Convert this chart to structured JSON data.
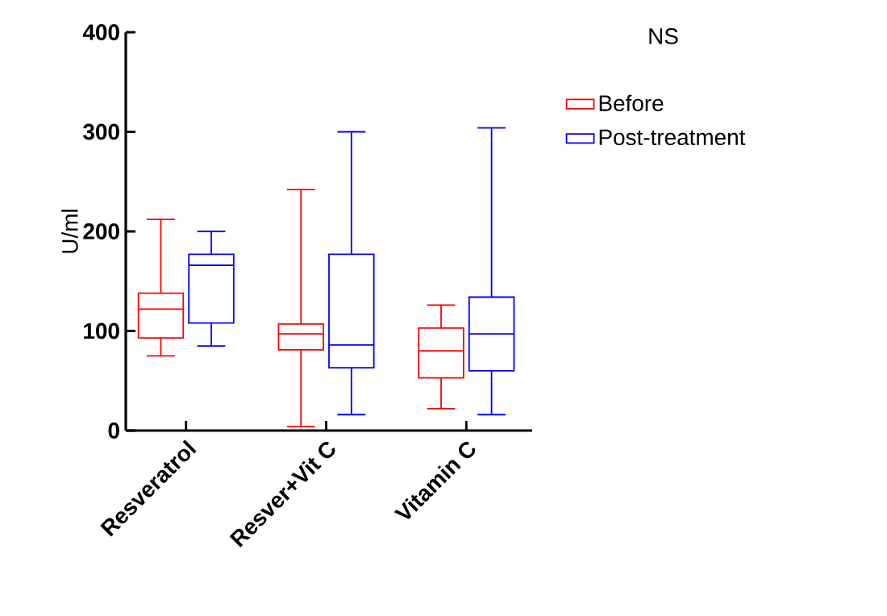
{
  "chart_data": {
    "type": "box",
    "ylabel": "U/ml",
    "categories": [
      "Resveratrol",
      "Resver+Vit C",
      "Vitamin C"
    ],
    "ylim": [
      0,
      400
    ],
    "yticks": [
      0,
      100,
      200,
      300,
      400
    ],
    "legend": "top right",
    "annotations": [
      "NS"
    ],
    "series": [
      {
        "name": "Before",
        "color": "#ff0000",
        "boxes": [
          {
            "low": 75,
            "q1": 93,
            "median": 122,
            "q3": 138,
            "high": 212
          },
          {
            "low": 4,
            "q1": 81,
            "median": 97,
            "q3": 107,
            "high": 242
          },
          {
            "low": 22,
            "q1": 53,
            "median": 80,
            "q3": 103,
            "high": 126
          }
        ]
      },
      {
        "name": "Post-treatment",
        "color": "#0000ff",
        "boxes": [
          {
            "low": 85,
            "q1": 108,
            "median": 166,
            "q3": 177,
            "high": 200
          },
          {
            "low": 16,
            "q1": 63,
            "median": 86,
            "q3": 177,
            "high": 300
          },
          {
            "low": 16,
            "q1": 60,
            "median": 97,
            "q3": 134,
            "high": 304
          }
        ]
      }
    ]
  }
}
